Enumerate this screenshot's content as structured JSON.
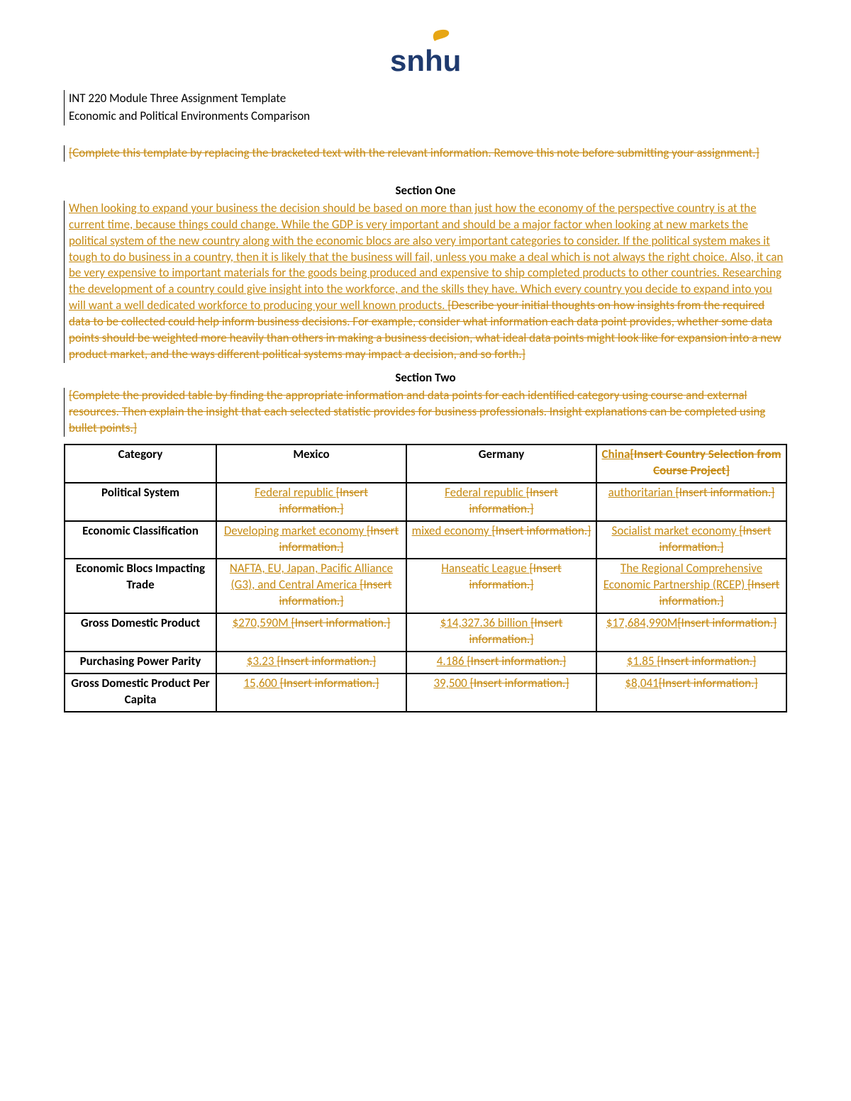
{
  "logo": {
    "text": "snhu",
    "text_color": "#1f3a6e",
    "flame_color": "#e7a614"
  },
  "header": {
    "line1": "INT 220 Module Three Assignment Template",
    "line2": "Economic and Political Environments Comparison"
  },
  "note": {
    "text": "[Complete this template by replacing the bracketed text with the relevant information. Remove this note before submitting your assignment.]"
  },
  "section_one": {
    "heading": "Section One",
    "underlined": "When looking to expand your business the decision should be based on more than just how the economy of the perspective country is at the current time, because things could change.  While the GDP is very important and should be a major factor when looking at new markets the political system of the new country along with the economic blocs are also very important categories to consider.  If the political system makes it tough to do business in a country, then it is likely that the business will fail, unless you make a deal which is not always the right choice.  Also, it can be very expensive to important materials for the goods being produced and expensive to ship completed products to other countries.  Researching the development of a country could give insight into the workforce, and the skills they have.  Which every country you decide to expand into you will want a well dedicated workforce to producing your well known products. ",
    "struck": "[Describe your initial thoughts on how insights from the required data to be collected could help inform business decisions. For example, consider what information each data point provides, whether some data points should be weighted more heavily than others in making a business decision, what ideal data points might look like for expansion into a new product market, and the ways different political systems may impact a decision, and so forth.]"
  },
  "section_two": {
    "heading": "Section Two",
    "instruction": "[Complete the provided table by finding the appropriate information and data points for each identified category using course and external resources. Then explain the insight that each selected statistic provides for business professionals. Insight explanations can be completed using bullet points.]"
  },
  "table": {
    "headers": {
      "category": "Category",
      "mexico": "Mexico",
      "germany": "Germany",
      "china_u": "China",
      "china_s": "[Insert Country Selection from Course Project]"
    },
    "rows": [
      {
        "category": "Political System",
        "mexico_u": "Federal republic ",
        "mexico_s": "[Insert information.]",
        "germany_u": "Federal republic ",
        "germany_s": "[Insert information.]",
        "china_u": "authoritarian ",
        "china_s": "[Insert information.]"
      },
      {
        "category": "Economic Classification",
        "mexico_u": "Developing market economy ",
        "mexico_s": "[Insert information.]",
        "germany_u": "mixed economy ",
        "germany_s": "[Insert information.]",
        "china_u": "Socialist market economy ",
        "china_s": "[Insert information.]"
      },
      {
        "category": "Economic Blocs Impacting Trade",
        "mexico_u": "NAFTA, EU, Japan, Pacific Alliance (G3), and Central America ",
        "mexico_s": "[Insert information.]",
        "germany_u": "Hanseatic League ",
        "germany_s": "[Insert information.]",
        "china_u": "The Regional Comprehensive Economic Partnership (RCEP) ",
        "china_s": "[Insert information.]"
      },
      {
        "category": "Gross Domestic Product",
        "mexico_u": "$270,590M ",
        "mexico_s": "[Insert information.]",
        "germany_u": "$14,327.36 billion ",
        "germany_s": "[Insert information.]",
        "china_u": "$17,684,990M",
        "china_s": "[Insert information.]"
      },
      {
        "category": "Purchasing Power Parity",
        "mexico_u": "$3.23 ",
        "mexico_s": "[Insert information.]",
        "germany_u": "4.186 ",
        "germany_s": "[Insert information.]",
        "china_u": "$1.85 ",
        "china_s": "[Insert information.]"
      },
      {
        "category": "Gross Domestic Product Per Capita",
        "mexico_u": "15,600 ",
        "mexico_s": "[Insert information.]",
        "germany_u": "39,500 ",
        "germany_s": "[Insert information.]",
        "china_u": "$8,041",
        "china_s": "[Insert information.]"
      }
    ]
  },
  "colors": {
    "orange": "#c58a12",
    "logo_blue": "#1f3a6e"
  }
}
